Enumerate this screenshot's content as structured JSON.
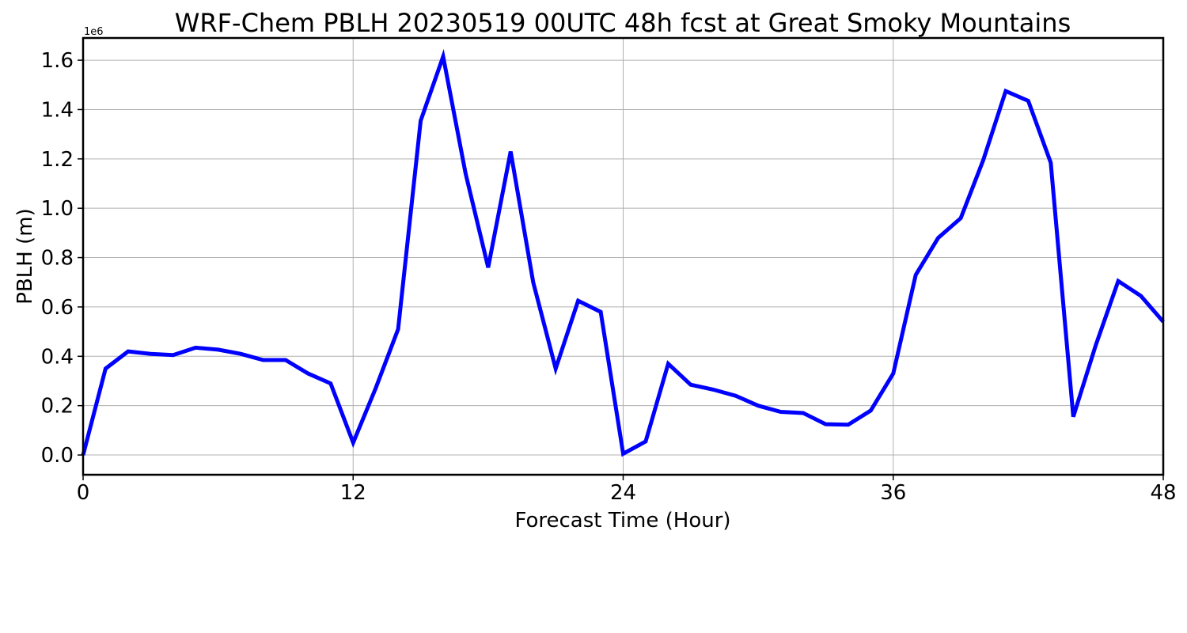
{
  "chart_data": {
    "type": "line",
    "title": "WRF-Chem PBLH  20230519 00UTC 48h fcst at Great Smoky Mountains",
    "xlabel": "Forecast Time (Hour)",
    "ylabel": "PBLH  (m)",
    "y_offset_label": "1e6",
    "xlim": [
      0,
      48
    ],
    "ylim": [
      -0.08,
      1.69
    ],
    "x_ticks": [
      0,
      12,
      24,
      36,
      48
    ],
    "x_tick_labels": [
      "0",
      "12",
      "24",
      "36",
      "48"
    ],
    "y_ticks": [
      0.0,
      0.2,
      0.4,
      0.6,
      0.8,
      1.0,
      1.2,
      1.4,
      1.6
    ],
    "y_tick_labels": [
      "0.0",
      "0.2",
      "0.4",
      "0.6",
      "0.8",
      "1.0",
      "1.2",
      "1.4",
      "1.6"
    ],
    "grid": true,
    "legend": "none",
    "series": [
      {
        "color": "#0000ff",
        "x": [
          0,
          1,
          2,
          3,
          4,
          5,
          6,
          7,
          8,
          9,
          10,
          11,
          12,
          13,
          14,
          15,
          16,
          17,
          18,
          19,
          20,
          21,
          22,
          23,
          24,
          25,
          26,
          27,
          28,
          29,
          30,
          31,
          32,
          33,
          34,
          35,
          36,
          37,
          38,
          39,
          40,
          41,
          42,
          43,
          44,
          45,
          46,
          47,
          48
        ],
        "y": [
          0.0,
          0.35,
          0.42,
          0.41,
          0.405,
          0.435,
          0.427,
          0.41,
          0.385,
          0.385,
          0.33,
          0.29,
          0.05,
          0.27,
          0.51,
          1.355,
          1.615,
          1.14,
          0.76,
          1.23,
          0.7,
          0.35,
          0.625,
          0.58,
          0.005,
          0.055,
          0.37,
          0.285,
          0.265,
          0.24,
          0.2,
          0.175,
          0.17,
          0.125,
          0.123,
          0.18,
          0.33,
          0.73,
          0.88,
          0.96,
          1.195,
          1.475,
          1.435,
          1.185,
          0.155,
          0.445,
          0.705,
          0.645,
          0.54
        ]
      }
    ]
  }
}
